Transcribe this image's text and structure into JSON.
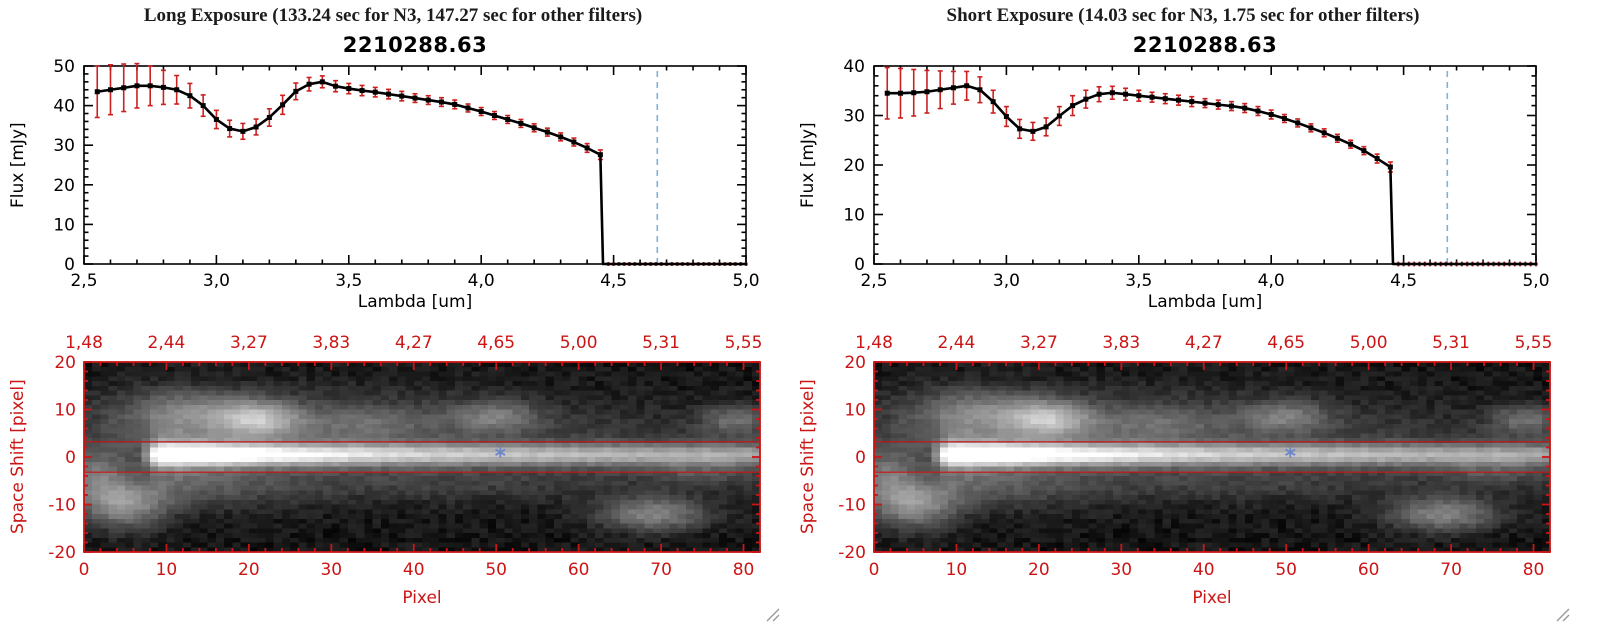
{
  "colors": {
    "background": "#ffffff",
    "axis_black": "#000000",
    "red_axis": "#cc1515",
    "error_bar": "#cc2020",
    "dashed_guide": "#7fb0d6",
    "asterisk_marker": "#6d87c8",
    "spectrum_line": "#000000",
    "grip_gray": "#999999"
  },
  "panels": [
    {
      "header": "Long Exposure (133.24 sec for N3, 147.27 sec for other filters)",
      "plot_title": "2210288.63"
    },
    {
      "header": "Short Exposure (14.03 sec for N3, 1.75 sec for other filters)",
      "plot_title": "2210288.63"
    }
  ],
  "chart_data": [
    {
      "type": "line",
      "panel": 0,
      "title": "2210288.63",
      "xlabel": "Lambda [um]",
      "ylabel": "Flux [mJy]",
      "xlim": [
        2.5,
        5.0
      ],
      "ylim": [
        0,
        50
      ],
      "xticks": {
        "values": [
          2.5,
          3.0,
          3.5,
          4.0,
          4.5,
          5.0
        ],
        "labels": [
          "2,5",
          "3,0",
          "3,5",
          "4,0",
          "4,5",
          "5,0"
        ]
      },
      "yticks": {
        "values": [
          0,
          10,
          20,
          30,
          40,
          50
        ],
        "labels": [
          "0",
          "10",
          "20",
          "30",
          "40",
          "50"
        ]
      },
      "x": [
        2.55,
        2.6,
        2.65,
        2.7,
        2.75,
        2.8,
        2.85,
        2.9,
        2.95,
        3.0,
        3.05,
        3.1,
        3.15,
        3.2,
        3.25,
        3.3,
        3.35,
        3.4,
        3.45,
        3.5,
        3.55,
        3.6,
        3.65,
        3.7,
        3.75,
        3.8,
        3.85,
        3.9,
        3.95,
        4.0,
        4.05,
        4.1,
        4.15,
        4.2,
        4.25,
        4.3,
        4.35,
        4.4,
        4.45
      ],
      "y": [
        43.5,
        44.0,
        44.5,
        45.0,
        45.0,
        44.6,
        44.0,
        42.5,
        40.0,
        36.5,
        34.2,
        33.5,
        34.6,
        37.0,
        40.2,
        43.6,
        45.4,
        46.0,
        44.9,
        44.3,
        43.8,
        43.4,
        42.9,
        42.4,
        41.9,
        41.4,
        40.9,
        40.3,
        39.4,
        38.5,
        37.5,
        36.5,
        35.5,
        34.4,
        33.3,
        32.1,
        30.8,
        29.3,
        27.6
      ],
      "yerr": [
        6.5,
        6.3,
        6.0,
        5.6,
        5.0,
        4.3,
        3.6,
        3.1,
        2.7,
        2.3,
        2.1,
        2.0,
        2.0,
        2.2,
        2.4,
        2.1,
        1.7,
        1.5,
        1.4,
        1.3,
        1.3,
        1.2,
        1.2,
        1.2,
        1.1,
        1.1,
        1.1,
        1.1,
        1.0,
        1.0,
        1.0,
        1.0,
        1.0,
        1.0,
        1.0,
        1.0,
        1.0,
        1.1,
        1.2
      ],
      "drop_x": 4.46,
      "tail": {
        "x_start": 4.48,
        "x_end": 5.0,
        "step": 0.02,
        "y": 0,
        "yerr": 0.5
      },
      "dashed_line_x": 4.665
    },
    {
      "type": "line",
      "panel": 1,
      "title": "2210288.63",
      "xlabel": "Lambda [um]",
      "ylabel": "Flux [mJy]",
      "xlim": [
        2.5,
        5.0
      ],
      "ylim": [
        0,
        40
      ],
      "xticks": {
        "values": [
          2.5,
          3.0,
          3.5,
          4.0,
          4.5,
          5.0
        ],
        "labels": [
          "2,5",
          "3,0",
          "3,5",
          "4,0",
          "4,5",
          "5,0"
        ]
      },
      "yticks": {
        "values": [
          0,
          10,
          20,
          30,
          40
        ],
        "labels": [
          "0",
          "10",
          "20",
          "30",
          "40"
        ]
      },
      "x": [
        2.55,
        2.6,
        2.65,
        2.7,
        2.75,
        2.8,
        2.85,
        2.9,
        2.95,
        3.0,
        3.05,
        3.1,
        3.15,
        3.2,
        3.25,
        3.3,
        3.35,
        3.4,
        3.45,
        3.5,
        3.55,
        3.6,
        3.65,
        3.7,
        3.75,
        3.8,
        3.85,
        3.9,
        3.95,
        4.0,
        4.05,
        4.1,
        4.15,
        4.2,
        4.25,
        4.3,
        4.35,
        4.4,
        4.45
      ],
      "y": [
        34.5,
        34.5,
        34.6,
        34.8,
        35.2,
        35.6,
        36.0,
        35.2,
        32.8,
        29.8,
        27.3,
        26.8,
        27.7,
        29.9,
        32.0,
        33.3,
        34.3,
        34.6,
        34.3,
        34.0,
        33.7,
        33.4,
        33.1,
        32.8,
        32.5,
        32.2,
        31.9,
        31.5,
        30.9,
        30.2,
        29.4,
        28.5,
        27.5,
        26.5,
        25.4,
        24.2,
        22.9,
        21.3,
        19.6
      ],
      "yerr": [
        5.2,
        5.0,
        4.7,
        4.3,
        3.8,
        3.3,
        2.9,
        2.6,
        2.3,
        2.0,
        1.9,
        1.8,
        1.8,
        1.9,
        2.0,
        1.8,
        1.5,
        1.3,
        1.2,
        1.1,
        1.0,
        1.0,
        1.0,
        1.0,
        0.9,
        0.9,
        0.9,
        0.9,
        0.9,
        0.9,
        0.8,
        0.8,
        0.8,
        0.8,
        0.8,
        0.8,
        0.8,
        0.9,
        1.0
      ],
      "drop_x": 4.46,
      "tail": {
        "x_start": 4.48,
        "x_end": 5.0,
        "step": 0.02,
        "y": 0,
        "yerr": 0.5
      },
      "dashed_line_x": 4.665
    },
    {
      "type": "heatmap",
      "applies_to_panels": [
        0,
        1
      ],
      "xlabel": "Pixel",
      "ylabel": "Space Shift [pixel]",
      "xlim": [
        0,
        82
      ],
      "ylim": [
        -20,
        20
      ],
      "xticks": {
        "values": [
          0,
          10,
          20,
          30,
          40,
          50,
          60,
          70,
          80
        ],
        "labels": [
          "0",
          "10",
          "20",
          "30",
          "40",
          "50",
          "60",
          "70",
          "80"
        ]
      },
      "yticks": {
        "values": [
          20,
          10,
          0,
          -10,
          -20
        ],
        "labels": [
          "20",
          "10",
          "0",
          "-10",
          "-20"
        ]
      },
      "top_axis_labels": [
        "1,48",
        "2,44",
        "3,27",
        "3,83",
        "4,27",
        "4,65",
        "5,00",
        "5,31",
        "5,55"
      ],
      "extraction_lines_y": [
        3.2,
        -3.2
      ],
      "marker": {
        "x": 50.5,
        "y": 1,
        "shape": "asterisk"
      },
      "trace": {
        "y_center": 0.5,
        "core_sigma": 1.5,
        "halo_sigma": 5.5,
        "halo_amp": 0.25,
        "amp_profile": [
          [
            0,
            0
          ],
          [
            7,
            0.02
          ],
          [
            8,
            0.45
          ],
          [
            9,
            0.9
          ],
          [
            11,
            1.0
          ],
          [
            16,
            0.97
          ],
          [
            22,
            0.82
          ],
          [
            30,
            0.7
          ],
          [
            40,
            0.6
          ],
          [
            55,
            0.52
          ],
          [
            70,
            0.47
          ],
          [
            81,
            0.44
          ]
        ]
      },
      "blobs": [
        {
          "x": 21,
          "y": 8,
          "sx": 3.5,
          "sy": 2.6,
          "amp": 0.5
        },
        {
          "x": 13,
          "y": 10,
          "sx": 5,
          "sy": 3,
          "amp": 0.2
        },
        {
          "x": 30,
          "y": 9,
          "sx": 22,
          "sy": 4.5,
          "amp": 0.1
        },
        {
          "x": 8,
          "y": 4,
          "sx": 6,
          "sy": 6,
          "amp": 0.16
        },
        {
          "x": 34,
          "y": 7,
          "sx": 6,
          "sy": 2.5,
          "amp": 0.15
        },
        {
          "x": 50,
          "y": 8.5,
          "sx": 3.5,
          "sy": 2.2,
          "amp": 0.28
        },
        {
          "x": 79,
          "y": 8,
          "sx": 2.8,
          "sy": 2.2,
          "amp": 0.26
        },
        {
          "x": 5,
          "y": -10,
          "sx": 3.4,
          "sy": 3.4,
          "amp": 0.42
        },
        {
          "x": 1,
          "y": -4,
          "sx": 3,
          "sy": 4,
          "amp": 0.28
        },
        {
          "x": 69,
          "y": -12,
          "sx": 4.5,
          "sy": 2.4,
          "amp": 0.38
        },
        {
          "x": 75,
          "y": -3,
          "sx": 5,
          "sy": 2,
          "amp": 0.12
        },
        {
          "x": 14,
          "y": -7,
          "sx": 9,
          "sy": 3,
          "amp": 0.1
        },
        {
          "x": 45,
          "y": -6,
          "sx": 14,
          "sy": 2.5,
          "amp": 0.06
        }
      ],
      "noise": 0.04,
      "floor": 0.045
    }
  ]
}
